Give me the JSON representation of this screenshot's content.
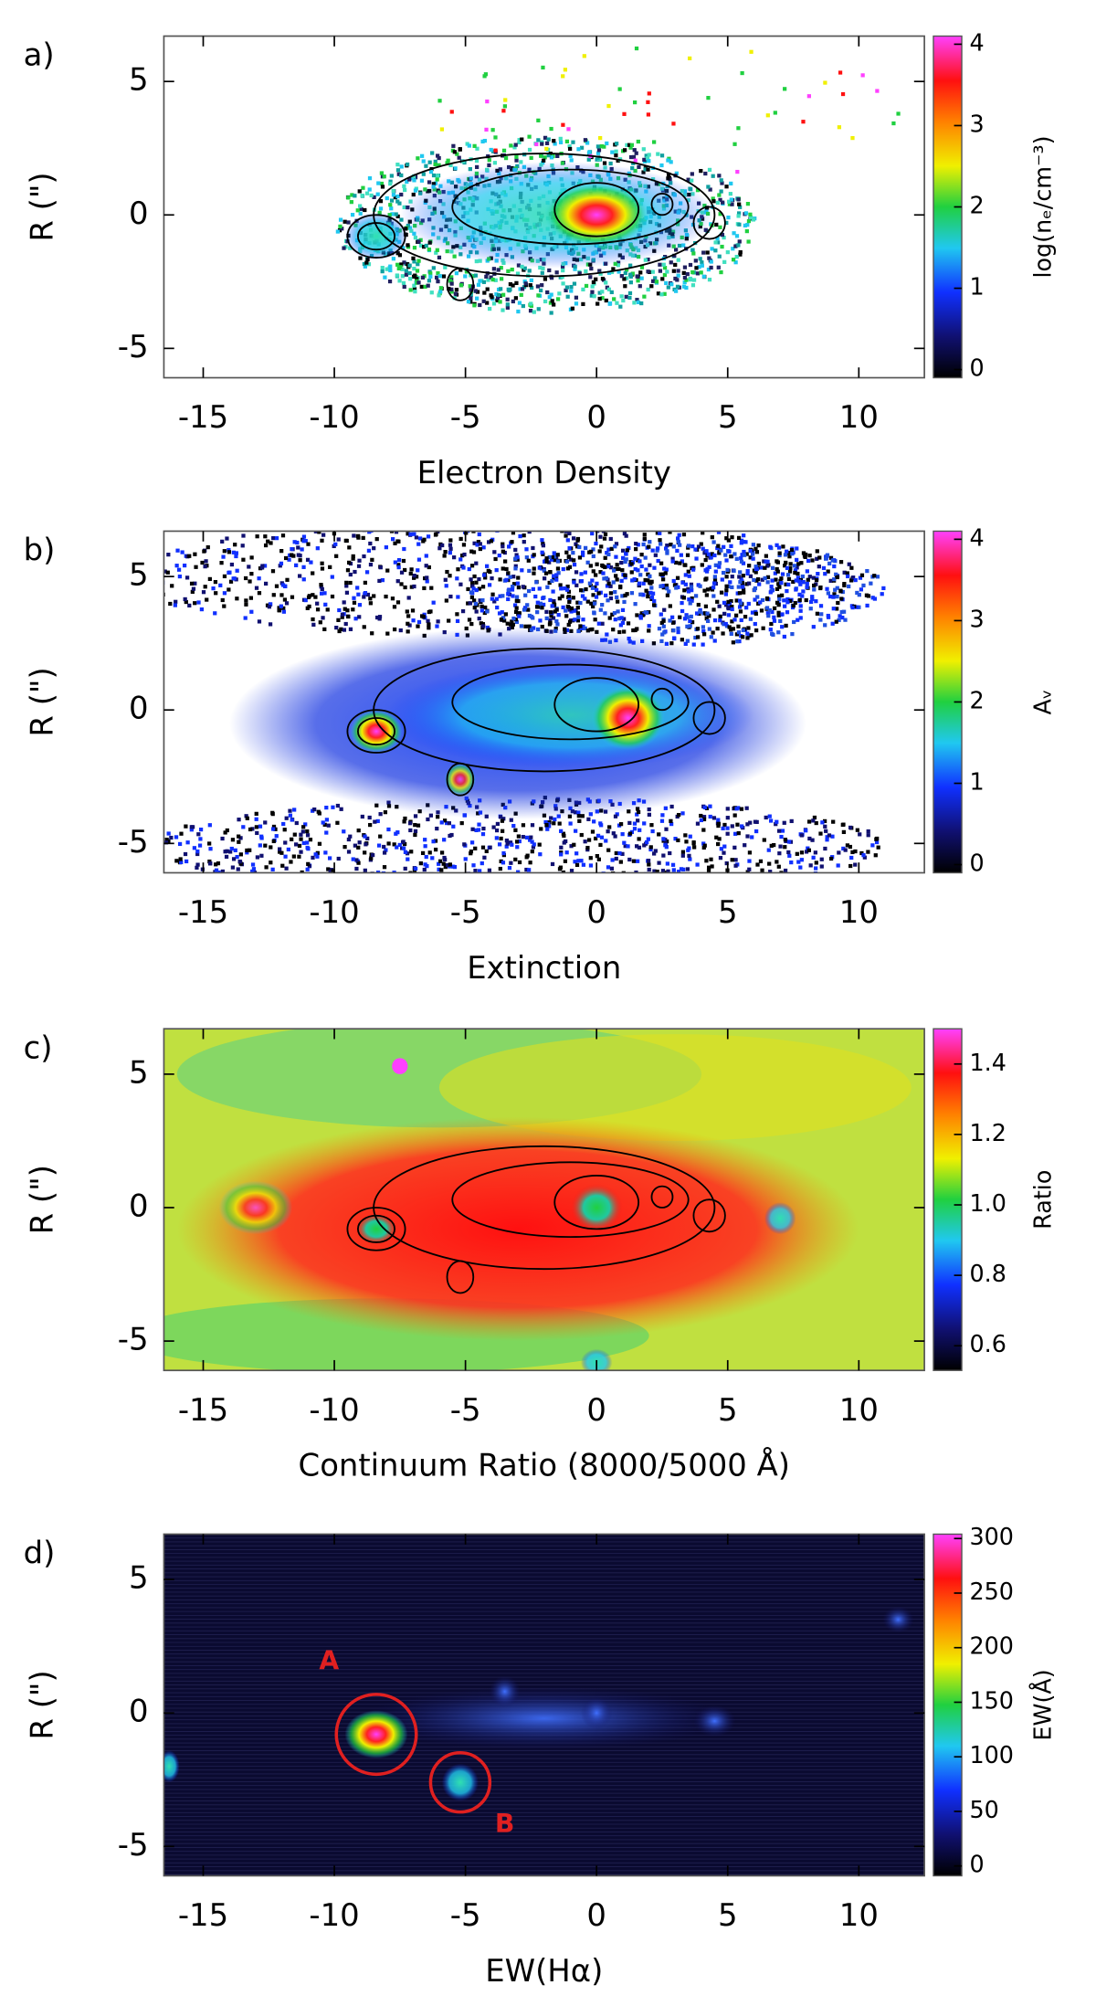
{
  "chart_data": [
    {
      "type": "heatmap",
      "panel_label": "a)",
      "xlabel": "Electron Density",
      "ylabel": "R (\")",
      "xlim": [
        -16.5,
        12.5
      ],
      "ylim": [
        -6.1,
        6.7
      ],
      "xticks": [
        -15,
        -10,
        -5,
        0,
        5,
        10
      ],
      "yticks": [
        -5,
        0,
        5
      ],
      "colorbar": {
        "label": "log(nₑ/cm⁻³)",
        "lim": [
          -0.1,
          4.1
        ],
        "ticks": [
          0,
          1,
          2,
          3,
          4
        ]
      }
    },
    {
      "type": "heatmap",
      "panel_label": "b)",
      "xlabel": "Extinction",
      "ylabel": "R (\")",
      "xlim": [
        -16.5,
        12.5
      ],
      "ylim": [
        -6.1,
        6.7
      ],
      "xticks": [
        -15,
        -10,
        -5,
        0,
        5,
        10
      ],
      "yticks": [
        -5,
        0,
        5
      ],
      "colorbar": {
        "label": "Aᵥ",
        "lim": [
          -0.1,
          4.1
        ],
        "ticks": [
          0,
          1,
          2,
          3,
          4
        ]
      }
    },
    {
      "type": "heatmap",
      "panel_label": "c)",
      "xlabel": "Continuum Ratio (8000/5000 Å)",
      "ylabel": "R (\")",
      "xlim": [
        -16.5,
        12.5
      ],
      "ylim": [
        -6.1,
        6.7
      ],
      "xticks": [
        -15,
        -10,
        -5,
        0,
        5,
        10
      ],
      "yticks": [
        -5,
        0,
        5
      ],
      "colorbar": {
        "label": "Ratio",
        "lim": [
          0.53,
          1.5
        ],
        "ticks": [
          0.6,
          0.8,
          {
            "value": 1,
            "label": "1.0"
          },
          1.2,
          1.4
        ]
      }
    },
    {
      "type": "heatmap",
      "panel_label": "d)",
      "xlabel": "EW(Hα)",
      "ylabel": "R (\")",
      "xlim": [
        -16.5,
        12.5
      ],
      "ylim": [
        -6.1,
        6.7
      ],
      "xticks": [
        -15,
        -10,
        -5,
        0,
        5,
        10
      ],
      "yticks": [
        -5,
        0,
        5
      ],
      "colorbar": {
        "label": "EW(Å)",
        "lim": [
          -9,
          304
        ],
        "ticks": [
          0,
          50,
          100,
          150,
          200,
          250,
          300
        ]
      },
      "annotations": [
        "A",
        "B"
      ]
    }
  ]
}
